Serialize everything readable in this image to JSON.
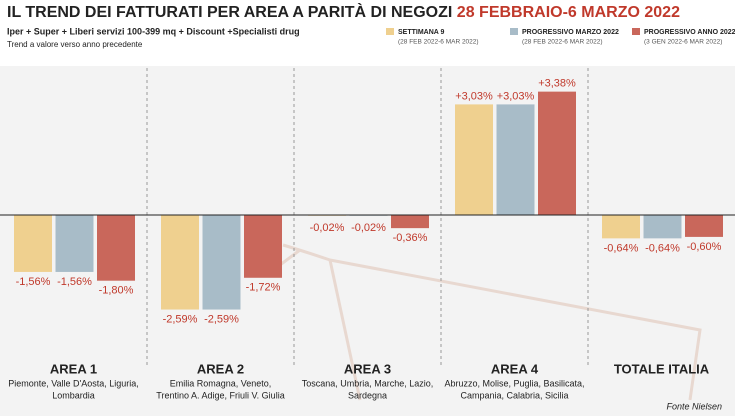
{
  "chart_data": {
    "type": "bar",
    "title": "IL TREND DEI FATTURATI PER AREA A PARITÀ DI NEGOZI",
    "title_period": "28 FEBBRAIO-6 MARZO 2022",
    "subtitle": "Iper + Super + Liberi servizi 100-399 mq + Discount +Specialisti drug",
    "subtitle2": "Trend a valore verso anno precedente",
    "categories": [
      "AREA 1",
      "AREA 2",
      "AREA 3",
      "AREA 4",
      "TOTALE ITALIA"
    ],
    "category_notes": [
      [
        "Piemonte, Valle D'Aosta, Liguria,",
        "Lombardia"
      ],
      [
        "Emilia Romagna, Veneto,",
        "Trentino A. Adige, Friuli V. Giulia"
      ],
      [
        "Toscana, Umbria, Marche, Lazio,",
        "Sardegna"
      ],
      [
        "Abruzzo, Molise, Puglia, Basilicata,",
        "Campania, Calabria, Sicilia"
      ],
      []
    ],
    "series": [
      {
        "name": "SETTIMANA 9",
        "period": "(28 FEB 2022-6 MAR 2022)",
        "color": "#efd08f",
        "values": [
          -1.56,
          -2.59,
          -0.02,
          3.03,
          -0.64
        ],
        "value_labels": [
          "-1,56%",
          "-2,59%",
          "-0,02%",
          "+3,03%",
          "-0,64%"
        ]
      },
      {
        "name": "PROGRESSIVO MARZO 2022",
        "period": "(28 FEB 2022-6 MAR 2022)",
        "color": "#a8bcc8",
        "values": [
          -1.56,
          -2.59,
          -0.02,
          3.03,
          -0.64
        ],
        "value_labels": [
          "-1,56%",
          "-2,59%",
          "-0,02%",
          "+3,03%",
          "-0,64%"
        ]
      },
      {
        "name": "PROGRESSIVO ANNO 2022",
        "period": "(3 GEN 2022-6 MAR 2022)",
        "color": "#c9675b",
        "values": [
          -1.8,
          -1.72,
          -0.36,
          3.38,
          -0.6
        ],
        "value_labels": [
          "-1,80%",
          "-1,72%",
          "-0,36%",
          "+3,38%",
          "-0,60%"
        ]
      }
    ],
    "source": "Fonte Nielsen"
  }
}
